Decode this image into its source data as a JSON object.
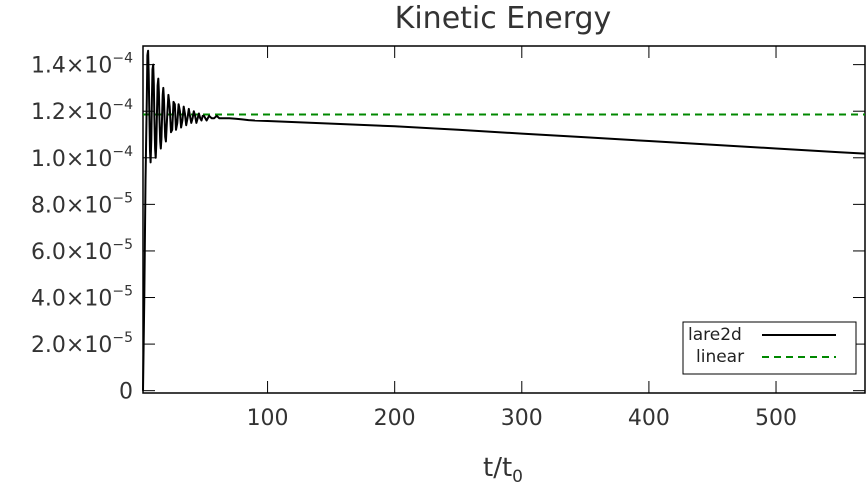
{
  "chart_data": {
    "type": "line",
    "title": "Kinetic Energy",
    "xlabel": "t/t",
    "xlabel_subscript": "0",
    "ylabel": "",
    "xlim": [
      2,
      570
    ],
    "ylim": [
      -1e-06,
      0.000148
    ],
    "x_ticks": [
      100,
      200,
      300,
      400,
      500
    ],
    "x_tick_labels": [
      "100",
      "200",
      "300",
      "400",
      "500"
    ],
    "y_ticks": [
      0,
      2e-05,
      4e-05,
      6e-05,
      8e-05,
      0.0001,
      0.00012,
      0.00014
    ],
    "y_tick_labels": [
      {
        "mantissa": "0",
        "exponent": ""
      },
      {
        "mantissa": "2.0×10",
        "exponent": "−5"
      },
      {
        "mantissa": "4.0×10",
        "exponent": "−5"
      },
      {
        "mantissa": "6.0×10",
        "exponent": "−5"
      },
      {
        "mantissa": "8.0×10",
        "exponent": "−5"
      },
      {
        "mantissa": "1.0×10",
        "exponent": "−4"
      },
      {
        "mantissa": "1.2×10",
        "exponent": "−4"
      },
      {
        "mantissa": "1.4×10",
        "exponent": "−4"
      }
    ],
    "grid": false,
    "legend_position": "bottom-right",
    "series": [
      {
        "name": "lare2d",
        "color": "#000000",
        "style": "solid",
        "x": [
          2,
          3,
          4,
          5,
          5.5,
          6,
          6.5,
          7,
          7.5,
          8,
          8.5,
          9,
          9.5,
          10,
          10.5,
          11,
          11.5,
          12,
          12.5,
          13,
          13.5,
          14,
          14.5,
          15,
          15.5,
          16,
          16.5,
          17,
          17.5,
          18,
          18.5,
          19,
          19.5,
          20,
          21,
          22,
          23,
          24,
          25,
          26,
          27,
          28,
          29,
          30,
          31,
          32,
          33,
          34,
          35,
          36,
          37,
          38,
          39,
          40,
          41,
          42,
          43,
          44,
          45,
          46,
          47,
          48,
          49,
          50,
          52,
          54,
          56,
          58,
          60,
          62,
          64,
          66,
          68,
          70,
          75,
          80,
          85,
          90,
          100,
          150,
          200,
          250,
          300,
          350,
          400,
          450,
          500,
          550,
          570
        ],
        "y": [
          0,
          4e-05,
          9e-05,
          0.000125,
          0.000144,
          0.000146,
          0.000136,
          0.000118,
          0.000103,
          9.8e-05,
          0.000108,
          0.000125,
          0.000138,
          0.00014,
          0.000132,
          0.000117,
          0.000104,
          0.0001,
          0.000106,
          0.00012,
          0.000131,
          0.000134,
          0.000128,
          0.000116,
          0.000107,
          0.000104,
          0.000108,
          0.000118,
          0.000127,
          0.00013,
          0.000125,
          0.000116,
          0.000109,
          0.000107,
          0.000118,
          0.000127,
          0.000122,
          0.000111,
          0.000112,
          0.000124,
          0.000123,
          0.000112,
          0.000115,
          0.000123,
          0.00012,
          0.000113,
          0.000116,
          0.000122,
          0.000119,
          0.000114,
          0.000117,
          0.000121,
          0.000118,
          0.000115,
          0.000117,
          0.00012,
          0.000118,
          0.000115,
          0.000117,
          0.000119,
          0.000117,
          0.000116,
          0.000118,
          0.000118,
          0.000116,
          0.000118,
          0.000117,
          0.000117,
          0.000118,
          0.000117,
          0.000117,
          0.000117,
          0.000117,
          0.000117,
          0.0001168,
          0.0001165,
          0.0001162,
          0.000116,
          0.0001158,
          0.0001147,
          0.0001135,
          0.000112,
          0.0001104,
          0.0001088,
          0.0001072,
          0.0001056,
          0.000104,
          0.0001024,
          0.0001018
        ]
      },
      {
        "name": "linear",
        "color": "#008800",
        "style": "dashed",
        "x": [
          2,
          570
        ],
        "y": [
          0.0001186,
          0.0001186
        ]
      }
    ]
  }
}
